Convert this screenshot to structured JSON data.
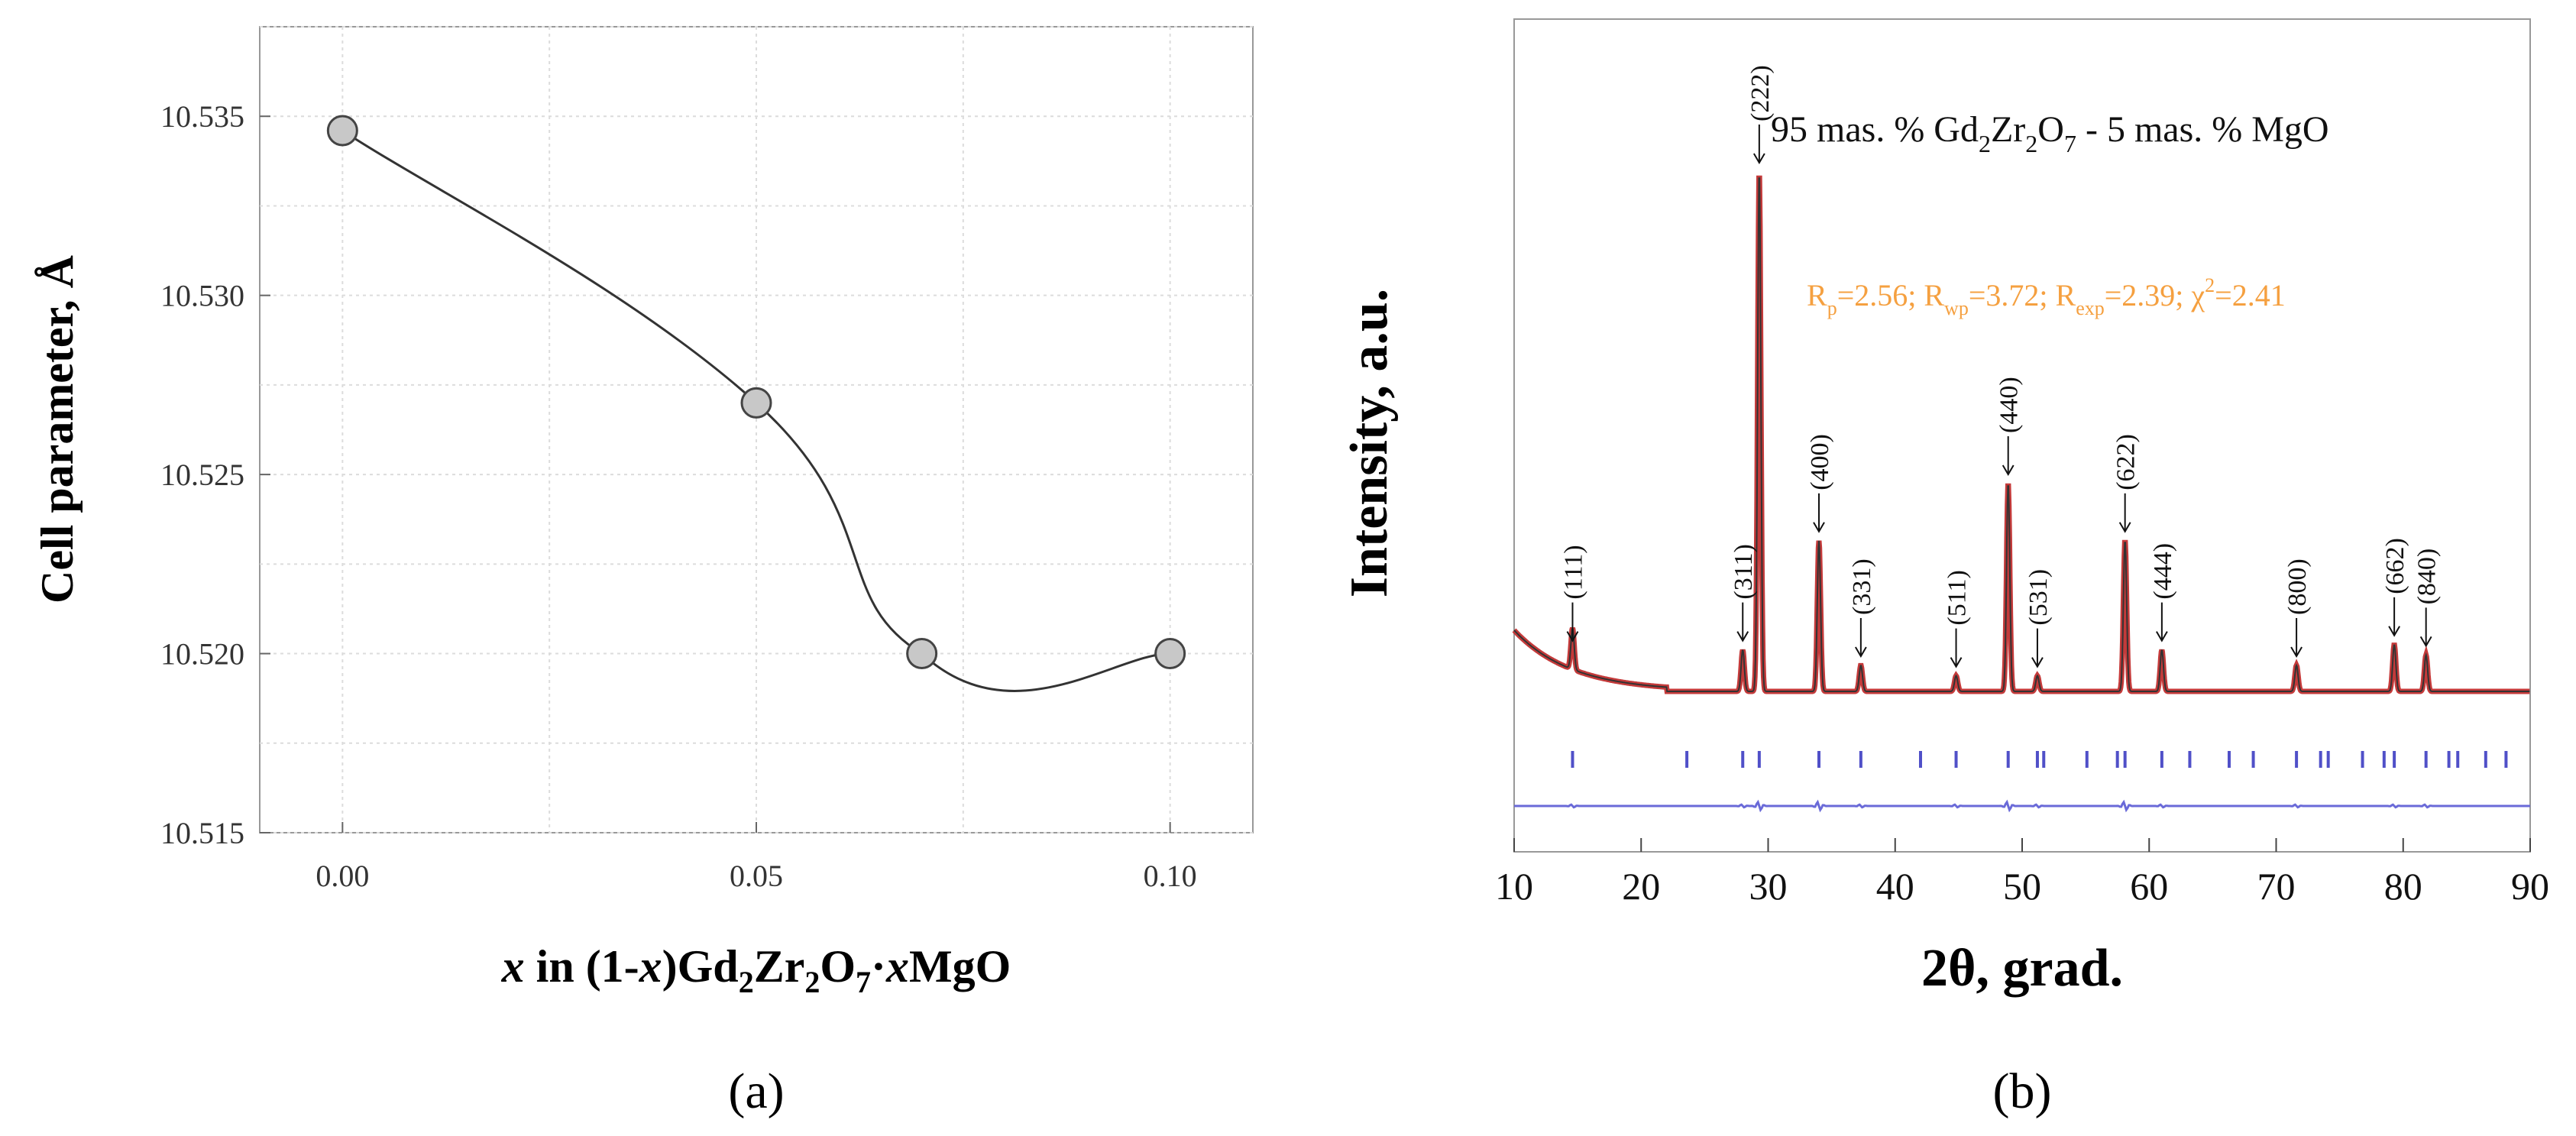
{
  "chart_data": [
    {
      "type": "line",
      "panel": "(a)",
      "title": "",
      "xlabel": {
        "italic": "x",
        "text": " in (1-",
        "italic2": "x",
        "text2": ")Gd",
        "sub1": "2",
        "text3": "Zr",
        "sub2": "2",
        "text4": "O",
        "sub3": "7",
        "text5": "·",
        "italic3": "x",
        "text6": "MgO"
      },
      "ylabel": "Cell parameter, Å",
      "x": [
        0.0,
        0.05,
        0.07,
        0.1
      ],
      "values": [
        10.5346,
        10.527,
        10.52,
        10.52
      ],
      "xlim": [
        -0.01,
        0.11
      ],
      "ylim": [
        10.515,
        10.5375
      ],
      "xticks": [
        "0.00",
        "0.05",
        "0.10"
      ],
      "xtick_values": [
        0.0,
        0.05,
        0.1
      ],
      "yticks": [
        "10.515",
        "10.520",
        "10.525",
        "10.530",
        "10.535"
      ],
      "ytick_values": [
        10.515,
        10.52,
        10.525,
        10.53,
        10.535
      ],
      "grid": true,
      "marker_color": "#c8c8c8",
      "line_color": "#333333"
    },
    {
      "type": "line",
      "panel": "(b)",
      "xlabel": "2θ, grad.",
      "ylabel": "Intensity, a.u.",
      "title": {
        "pre": "95 mas. % Gd",
        "s1": "2",
        "m1": "Zr",
        "s2": "2",
        "m2": "O",
        "s3": "7",
        "post": " - 5 mas. % MgO"
      },
      "stats": {
        "r1": "R",
        "r1s": "p",
        "r1v": "=2.56; ",
        "r2": "R",
        "r2s": "wp",
        "r2v": "=3.72; ",
        "r3": "R",
        "r3s": "exp",
        "r3v": "=2.39; ",
        "r4": "χ",
        "r4s": "2",
        "r4v": "=2.41"
      },
      "xlim": [
        10,
        90
      ],
      "xticks": [
        "10",
        "20",
        "30",
        "40",
        "50",
        "60",
        "70",
        "80",
        "90"
      ],
      "xtick_values": [
        10,
        20,
        30,
        40,
        50,
        60,
        70,
        80,
        90
      ],
      "peaks": [
        {
          "hkl": "(111)",
          "two_theta": 14.6,
          "height": 8
        },
        {
          "hkl": "(311)",
          "two_theta": 28.0,
          "height": 8
        },
        {
          "hkl": "(222)",
          "two_theta": 29.3,
          "height": 100
        },
        {
          "hkl": "(400)",
          "two_theta": 34.0,
          "height": 29
        },
        {
          "hkl": "(331)",
          "two_theta": 37.3,
          "height": 5
        },
        {
          "hkl": "(511)",
          "two_theta": 44.8,
          "height": 3
        },
        {
          "hkl": "(440)",
          "two_theta": 48.9,
          "height": 40
        },
        {
          "hkl": "(531)",
          "two_theta": 51.2,
          "height": 3
        },
        {
          "hkl": "(622)",
          "two_theta": 58.1,
          "height": 29
        },
        {
          "hkl": "(444)",
          "two_theta": 61.0,
          "height": 8
        },
        {
          "hkl": "(800)",
          "two_theta": 71.6,
          "height": 5
        },
        {
          "hkl": "(662)",
          "two_theta": 79.3,
          "height": 9
        },
        {
          "hkl": "(840)",
          "two_theta": 81.8,
          "height": 7
        }
      ],
      "bragg_positions": [
        14.6,
        23.6,
        28.0,
        29.3,
        34.0,
        37.3,
        42.0,
        44.8,
        48.9,
        51.2,
        51.7,
        55.1,
        57.5,
        58.1,
        61.0,
        63.2,
        66.3,
        68.2,
        71.6,
        73.5,
        74.1,
        76.8,
        78.5,
        79.3,
        81.8,
        83.6,
        84.3,
        86.5,
        88.1
      ],
      "observed_color": "#c43a3a",
      "calculated_color": "#333333",
      "difference_color": "#6a6ad8",
      "bragg_color": "#5050c8"
    }
  ],
  "labels": {
    "a": "(a)",
    "b": "(b)"
  }
}
